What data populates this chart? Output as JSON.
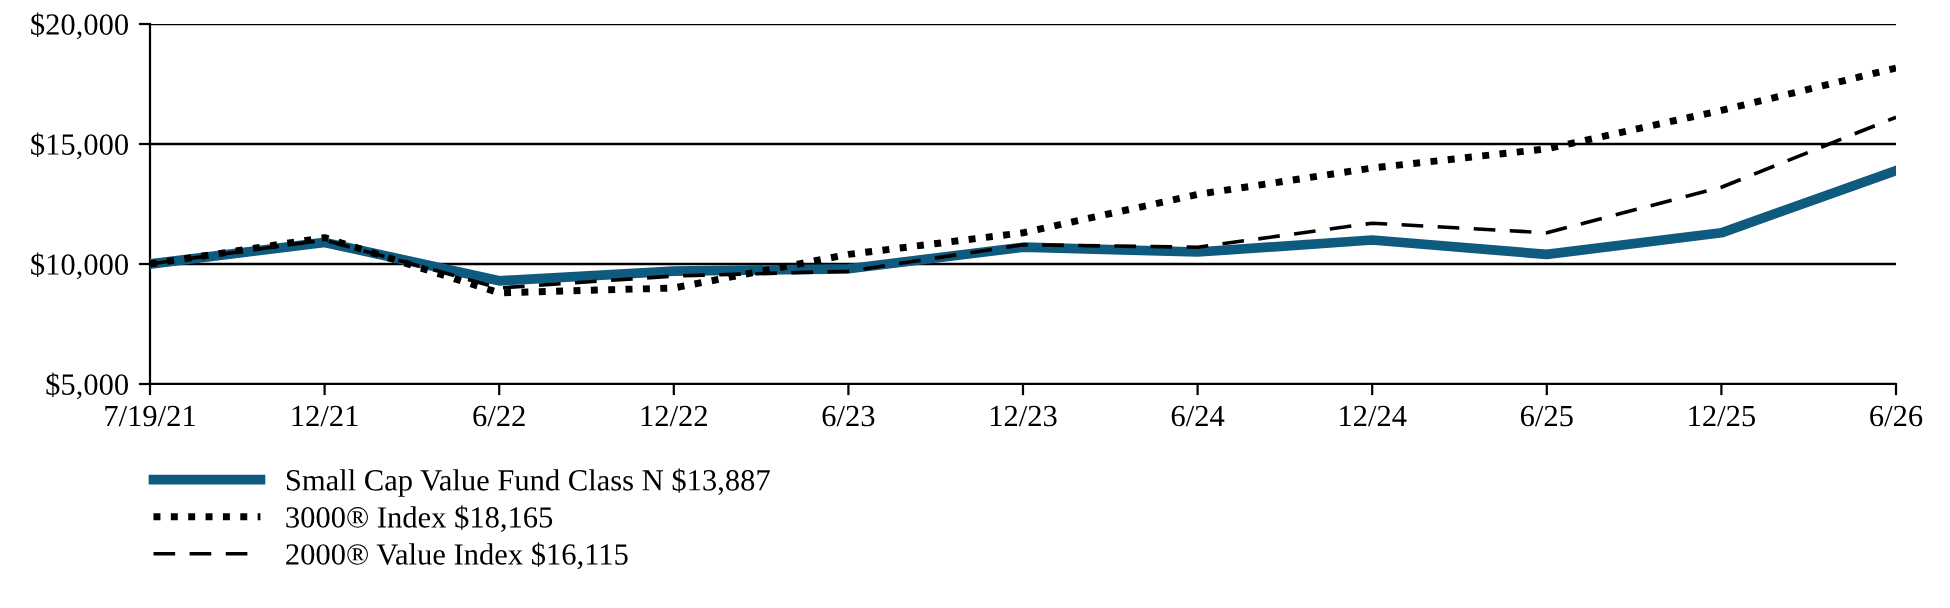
{
  "chart_data": {
    "type": "line",
    "categories": [
      "7/19/21",
      "12/21",
      "6/22",
      "12/22",
      "6/23",
      "12/23",
      "6/24",
      "12/24",
      "6/25",
      "12/25",
      "6/26"
    ],
    "series": [
      {
        "name": "Small Cap Value Fund Class N $13,887",
        "color": "#0f5a7f",
        "line_style": "solid",
        "values": [
          10000,
          10900,
          9300,
          9700,
          9800,
          10700,
          10500,
          11000,
          10400,
          11300,
          13887
        ]
      },
      {
        "name": "3000® Index $18,165",
        "color": "#000000",
        "line_style": "dotted",
        "values": [
          10000,
          11100,
          8800,
          9000,
          10400,
          11300,
          12900,
          14000,
          14800,
          16400,
          18165
        ]
      },
      {
        "name": "2000® Value Index $16,115",
        "color": "#000000",
        "line_style": "dashed",
        "values": [
          10000,
          11000,
          9000,
          9500,
          9700,
          10800,
          10700,
          11700,
          11300,
          13200,
          16115
        ]
      }
    ],
    "ylim": [
      5000,
      20000
    ],
    "yticks": [
      {
        "value": 5000,
        "label": "$5,000"
      },
      {
        "value": 10000,
        "label": "$10,000"
      },
      {
        "value": 15000,
        "label": "$15,000"
      },
      {
        "value": 20000,
        "label": "$20,000"
      }
    ],
    "grid": "y",
    "legend": "bottom left",
    "marker": "none"
  }
}
